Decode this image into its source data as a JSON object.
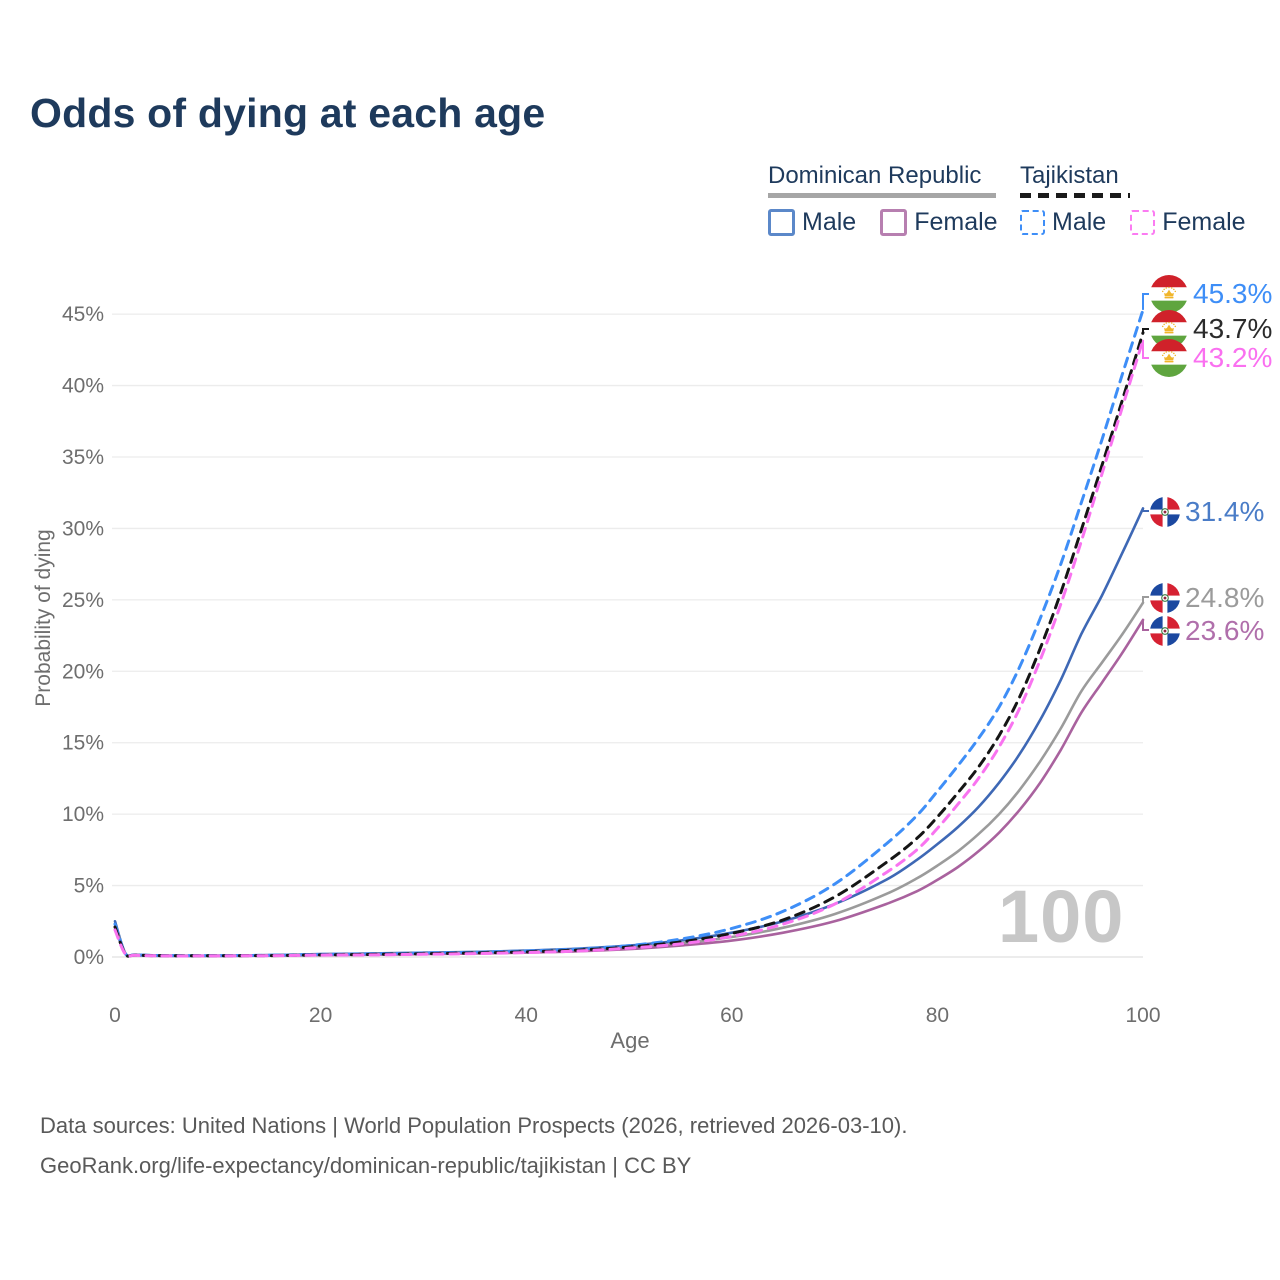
{
  "title": "Odds of dying at each age",
  "legend": {
    "groups": [
      {
        "country": "Dominican Republic",
        "line_style": "solid",
        "line_color": "#a6a6a6",
        "items": [
          {
            "label": "Male",
            "color": "#5b88c9",
            "dashed": false
          },
          {
            "label": "Female",
            "color": "#b77fb0",
            "dashed": false
          }
        ]
      },
      {
        "country": "Tajikistan",
        "line_style": "dashed",
        "line_color": "#1a1a1a",
        "items": [
          {
            "label": "Male",
            "color": "#3e8ef7",
            "dashed": true
          },
          {
            "label": "Female",
            "color": "#fb7bf2",
            "dashed": true
          }
        ]
      }
    ]
  },
  "axes": {
    "x_label": "Age",
    "y_label": "Probability of dying",
    "x_ticks": [
      "0",
      "20",
      "40",
      "60",
      "80",
      "100"
    ],
    "y_ticks": [
      "0%",
      "5%",
      "10%",
      "15%",
      "20%",
      "25%",
      "30%",
      "35%",
      "40%",
      "45%"
    ]
  },
  "watermark": "100",
  "footer": {
    "line1": "Data sources: United Nations | World Population Prospects (2026, retrieved 2026-03-10).",
    "line2": "GeoRank.org/life-expectancy/dominican-republic/tajikistan | CC BY"
  },
  "chart_data": {
    "type": "line",
    "title": "Odds of dying at each age",
    "xlabel": "Age",
    "ylabel": "Probability of dying",
    "xlim": [
      0,
      100
    ],
    "ylim_percent": [
      0,
      47
    ],
    "grid": "horizontal",
    "legend_position": "top-right",
    "series": [
      {
        "name": "Dominican Republic Male",
        "color": "#3e68b5",
        "label_color": "#4a7cc7",
        "dash": "solid",
        "end_label": "31.4%",
        "flag": "dominican-republic",
        "points": [
          [
            0,
            2.5
          ],
          [
            1,
            0.28
          ],
          [
            2,
            0.16
          ],
          [
            5,
            0.1
          ],
          [
            10,
            0.1
          ],
          [
            15,
            0.13
          ],
          [
            20,
            0.2
          ],
          [
            25,
            0.25
          ],
          [
            30,
            0.3
          ],
          [
            35,
            0.36
          ],
          [
            40,
            0.45
          ],
          [
            45,
            0.58
          ],
          [
            50,
            0.8
          ],
          [
            55,
            1.15
          ],
          [
            60,
            1.7
          ],
          [
            65,
            2.5
          ],
          [
            70,
            3.7
          ],
          [
            75,
            5.4
          ],
          [
            78,
            6.8
          ],
          [
            80,
            7.9
          ],
          [
            82,
            9.1
          ],
          [
            84,
            10.5
          ],
          [
            86,
            12.2
          ],
          [
            88,
            14.2
          ],
          [
            90,
            16.6
          ],
          [
            92,
            19.4
          ],
          [
            94,
            22.6
          ],
          [
            96,
            25.3
          ],
          [
            98,
            28.3
          ],
          [
            100,
            31.4
          ]
        ]
      },
      {
        "name": "Dominican Republic",
        "color": "#9b9b9b",
        "label_color": "#9b9b9b",
        "dash": "solid",
        "end_label": "24.8%",
        "flag": "dominican-republic",
        "points": [
          [
            0,
            2.3
          ],
          [
            1,
            0.25
          ],
          [
            2,
            0.14
          ],
          [
            5,
            0.09
          ],
          [
            10,
            0.09
          ],
          [
            15,
            0.11
          ],
          [
            20,
            0.17
          ],
          [
            25,
            0.21
          ],
          [
            30,
            0.25
          ],
          [
            35,
            0.3
          ],
          [
            40,
            0.38
          ],
          [
            45,
            0.48
          ],
          [
            50,
            0.66
          ],
          [
            55,
            0.95
          ],
          [
            60,
            1.4
          ],
          [
            65,
            2.05
          ],
          [
            70,
            3.0
          ],
          [
            75,
            4.4
          ],
          [
            78,
            5.5
          ],
          [
            80,
            6.4
          ],
          [
            82,
            7.4
          ],
          [
            84,
            8.6
          ],
          [
            86,
            10.0
          ],
          [
            88,
            11.7
          ],
          [
            90,
            13.7
          ],
          [
            92,
            16.0
          ],
          [
            94,
            18.6
          ],
          [
            96,
            20.6
          ],
          [
            98,
            22.6
          ],
          [
            100,
            24.8
          ]
        ]
      },
      {
        "name": "Dominican Republic Female",
        "color": "#a9629e",
        "label_color": "#b06fab",
        "dash": "solid",
        "end_label": "23.6%",
        "flag": "dominican-republic",
        "points": [
          [
            0,
            2.1
          ],
          [
            1,
            0.22
          ],
          [
            2,
            0.12
          ],
          [
            5,
            0.08
          ],
          [
            10,
            0.08
          ],
          [
            15,
            0.09
          ],
          [
            20,
            0.13
          ],
          [
            25,
            0.16
          ],
          [
            30,
            0.2
          ],
          [
            35,
            0.25
          ],
          [
            40,
            0.31
          ],
          [
            45,
            0.4
          ],
          [
            50,
            0.55
          ],
          [
            55,
            0.8
          ],
          [
            60,
            1.15
          ],
          [
            65,
            1.7
          ],
          [
            70,
            2.5
          ],
          [
            75,
            3.7
          ],
          [
            78,
            4.6
          ],
          [
            80,
            5.4
          ],
          [
            82,
            6.3
          ],
          [
            84,
            7.4
          ],
          [
            86,
            8.7
          ],
          [
            88,
            10.3
          ],
          [
            90,
            12.2
          ],
          [
            92,
            14.5
          ],
          [
            94,
            17.1
          ],
          [
            96,
            19.2
          ],
          [
            98,
            21.3
          ],
          [
            100,
            23.6
          ]
        ]
      },
      {
        "name": "Tajikistan Male",
        "color": "#3e8ef7",
        "label_color": "#3e8ef7",
        "dash": "dashed",
        "end_label": "45.3%",
        "flag": "tajikistan",
        "points": [
          [
            0,
            2.3
          ],
          [
            1,
            0.25
          ],
          [
            2,
            0.15
          ],
          [
            5,
            0.1
          ],
          [
            10,
            0.1
          ],
          [
            15,
            0.12
          ],
          [
            20,
            0.18
          ],
          [
            25,
            0.22
          ],
          [
            30,
            0.28
          ],
          [
            35,
            0.33
          ],
          [
            40,
            0.42
          ],
          [
            45,
            0.55
          ],
          [
            50,
            0.8
          ],
          [
            55,
            1.25
          ],
          [
            60,
            2.0
          ],
          [
            65,
            3.2
          ],
          [
            70,
            5.1
          ],
          [
            75,
            7.9
          ],
          [
            78,
            9.9
          ],
          [
            80,
            11.6
          ],
          [
            82,
            13.4
          ],
          [
            84,
            15.3
          ],
          [
            86,
            17.5
          ],
          [
            88,
            20.3
          ],
          [
            90,
            23.7
          ],
          [
            92,
            27.5
          ],
          [
            94,
            31.8
          ],
          [
            96,
            36.2
          ],
          [
            98,
            40.8
          ],
          [
            100,
            45.3
          ]
        ]
      },
      {
        "name": "Tajikistan",
        "color": "#151515",
        "label_color": "#2b2b2b",
        "dash": "dashed",
        "end_label": "43.7%",
        "flag": "tajikistan",
        "points": [
          [
            0,
            2.1
          ],
          [
            1,
            0.22
          ],
          [
            2,
            0.13
          ],
          [
            5,
            0.09
          ],
          [
            10,
            0.09
          ],
          [
            15,
            0.1
          ],
          [
            20,
            0.15
          ],
          [
            25,
            0.18
          ],
          [
            30,
            0.23
          ],
          [
            35,
            0.28
          ],
          [
            40,
            0.36
          ],
          [
            45,
            0.48
          ],
          [
            50,
            0.7
          ],
          [
            55,
            1.05
          ],
          [
            60,
            1.65
          ],
          [
            65,
            2.6
          ],
          [
            70,
            4.2
          ],
          [
            75,
            6.6
          ],
          [
            78,
            8.3
          ],
          [
            80,
            9.8
          ],
          [
            82,
            11.5
          ],
          [
            84,
            13.3
          ],
          [
            86,
            15.5
          ],
          [
            88,
            18.2
          ],
          [
            90,
            21.6
          ],
          [
            92,
            25.5
          ],
          [
            94,
            29.9
          ],
          [
            96,
            34.4
          ],
          [
            98,
            39.0
          ],
          [
            100,
            43.7
          ]
        ]
      },
      {
        "name": "Tajikistan Female",
        "color": "#f973f0",
        "label_color": "#fa70f0",
        "dash": "dashed",
        "end_label": "43.2%",
        "flag": "tajikistan",
        "points": [
          [
            0,
            1.9
          ],
          [
            1,
            0.2
          ],
          [
            2,
            0.12
          ],
          [
            5,
            0.08
          ],
          [
            10,
            0.08
          ],
          [
            15,
            0.09
          ],
          [
            20,
            0.13
          ],
          [
            25,
            0.15
          ],
          [
            30,
            0.19
          ],
          [
            35,
            0.24
          ],
          [
            40,
            0.31
          ],
          [
            45,
            0.42
          ],
          [
            50,
            0.62
          ],
          [
            55,
            0.92
          ],
          [
            60,
            1.45
          ],
          [
            65,
            2.3
          ],
          [
            70,
            3.7
          ],
          [
            75,
            5.9
          ],
          [
            78,
            7.5
          ],
          [
            80,
            9.0
          ],
          [
            82,
            10.7
          ],
          [
            84,
            12.5
          ],
          [
            86,
            14.7
          ],
          [
            88,
            17.4
          ],
          [
            90,
            20.8
          ],
          [
            92,
            24.7
          ],
          [
            94,
            29.1
          ],
          [
            96,
            33.8
          ],
          [
            98,
            38.5
          ],
          [
            100,
            43.2
          ]
        ]
      }
    ]
  }
}
